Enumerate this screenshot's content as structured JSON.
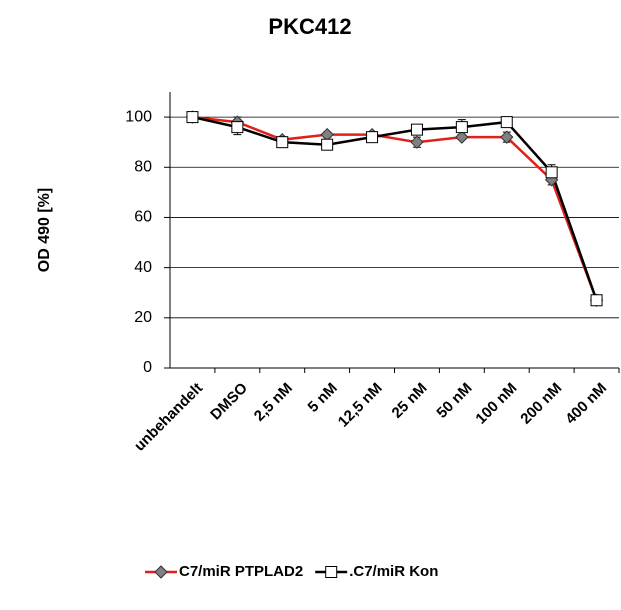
{
  "chart_data": {
    "type": "line",
    "title": "PKC412",
    "y_label": "OD 490 [%]",
    "categories": [
      "unbehandelt",
      "DMSO",
      "2,5 nM",
      "5 nM",
      "12,5 nM",
      "25 nM",
      "50 nM",
      "100 nM",
      "200 nM",
      "400 nM"
    ],
    "series": [
      {
        "name": "C7/miR PTPLAD2",
        "color": "#e0201b",
        "marker": "diamond",
        "marker_color": "#808080",
        "values": [
          100,
          98,
          91,
          93,
          93,
          90,
          92,
          92,
          75,
          27
        ],
        "errors": [
          1,
          2,
          1,
          1,
          1,
          2,
          1,
          2,
          2,
          1
        ]
      },
      {
        "name": ".C7/miR Kon",
        "color": "#000000",
        "marker": "square",
        "marker_color": "#ffffff",
        "values": [
          100,
          96,
          90,
          89,
          92,
          95,
          96,
          98,
          78,
          27
        ],
        "errors": [
          2,
          3,
          1,
          1,
          2,
          2,
          3,
          2,
          3,
          1
        ]
      }
    ],
    "ylim": [
      0,
      110
    ],
    "yticks": [
      0,
      20,
      40,
      60,
      80,
      100
    ],
    "grid": true,
    "legend": "bottom"
  }
}
